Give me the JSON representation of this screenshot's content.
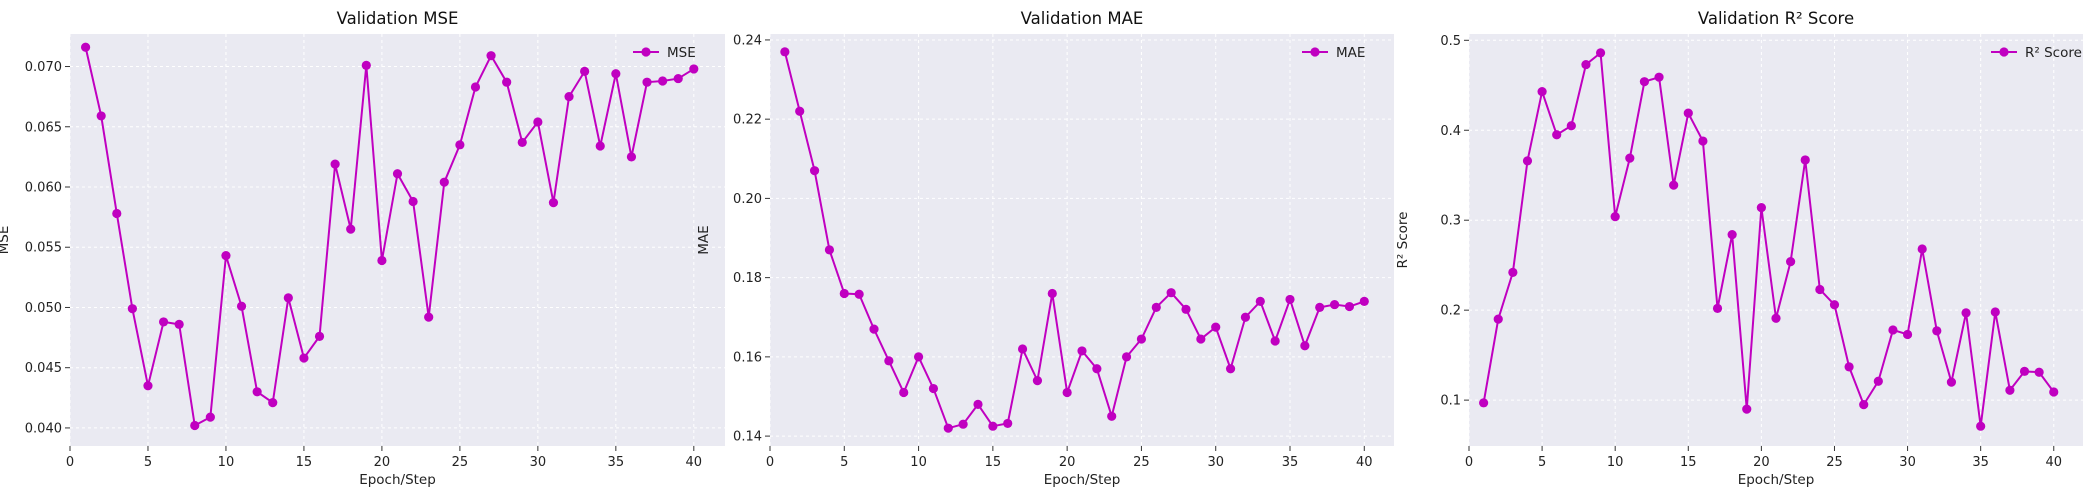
{
  "chart_data": [
    {
      "type": "line",
      "title": "Validation MSE",
      "xlabel": "Epoch/Step",
      "ylabel": "MSE",
      "xlim": [
        0,
        42
      ],
      "ylim": [
        0.0385,
        0.0727
      ],
      "xticks": [
        0,
        5,
        10,
        15,
        20,
        25,
        30,
        35,
        40
      ],
      "xtick_labels": [
        "0",
        "5",
        "10",
        "15",
        "20",
        "25",
        "30",
        "35",
        "40"
      ],
      "yticks": [
        0.04,
        0.045,
        0.05,
        0.055,
        0.06,
        0.065,
        0.07
      ],
      "ytick_labels": [
        "0.040",
        "0.045",
        "0.050",
        "0.055",
        "0.060",
        "0.065",
        "0.070"
      ],
      "grid": true,
      "legend_position": "top-right",
      "series": [
        {
          "name": "MSE",
          "color": "#c000c0",
          "x": [
            1,
            2,
            3,
            4,
            5,
            6,
            7,
            8,
            9,
            10,
            11,
            12,
            13,
            14,
            15,
            16,
            17,
            18,
            19,
            20,
            21,
            22,
            23,
            24,
            25,
            26,
            27,
            28,
            29,
            30,
            31,
            32,
            33,
            34,
            35,
            36,
            37,
            38,
            39,
            40
          ],
          "values": [
            0.0716,
            0.0659,
            0.0578,
            0.0499,
            0.0435,
            0.0488,
            0.0486,
            0.0402,
            0.0409,
            0.0543,
            0.0501,
            0.043,
            0.0421,
            0.0508,
            0.0458,
            0.0476,
            0.0619,
            0.0565,
            0.0701,
            0.0539,
            0.0611,
            0.0588,
            0.0492,
            0.0604,
            0.0635,
            0.0683,
            0.0709,
            0.0687,
            0.0637,
            0.0654,
            0.0587,
            0.0675,
            0.0696,
            0.0634,
            0.0694,
            0.0625,
            0.0687,
            0.0688,
            0.069,
            0.0698
          ]
        }
      ]
    },
    {
      "type": "line",
      "title": "Validation MAE",
      "xlabel": "Epoch/Step",
      "ylabel": "MAE",
      "xlim": [
        0,
        42
      ],
      "ylim": [
        0.1375,
        0.2415
      ],
      "xticks": [
        0,
        5,
        10,
        15,
        20,
        25,
        30,
        35,
        40
      ],
      "xtick_labels": [
        "0",
        "5",
        "10",
        "15",
        "20",
        "25",
        "30",
        "35",
        "40"
      ],
      "yticks": [
        0.14,
        0.16,
        0.18,
        0.2,
        0.22,
        0.24
      ],
      "ytick_labels": [
        "0.14",
        "0.16",
        "0.18",
        "0.20",
        "0.22",
        "0.24"
      ],
      "grid": true,
      "legend_position": "top-right",
      "series": [
        {
          "name": "MAE",
          "color": "#c000c0",
          "x": [
            1,
            2,
            3,
            4,
            5,
            6,
            7,
            8,
            9,
            10,
            11,
            12,
            13,
            14,
            15,
            16,
            17,
            18,
            19,
            20,
            21,
            22,
            23,
            24,
            25,
            26,
            27,
            28,
            29,
            30,
            31,
            32,
            33,
            34,
            35,
            36,
            37,
            38,
            39,
            40
          ],
          "values": [
            0.237,
            0.222,
            0.207,
            0.187,
            0.176,
            0.1758,
            0.167,
            0.159,
            0.151,
            0.16,
            0.152,
            0.142,
            0.143,
            0.148,
            0.1425,
            0.1432,
            0.162,
            0.154,
            0.176,
            0.151,
            0.1615,
            0.157,
            0.145,
            0.16,
            0.1645,
            0.1725,
            0.1762,
            0.172,
            0.1645,
            0.1675,
            0.157,
            0.17,
            0.174,
            0.164,
            0.1745,
            0.1628,
            0.1725,
            0.1732,
            0.1727,
            0.174
          ]
        }
      ]
    },
    {
      "type": "line",
      "title": "Validation R² Score",
      "xlabel": "Epoch/Step",
      "ylabel": "R² Score",
      "xlim": [
        0,
        42
      ],
      "ylim": [
        0.049,
        0.507
      ],
      "xticks": [
        0,
        5,
        10,
        15,
        20,
        25,
        30,
        35,
        40
      ],
      "xtick_labels": [
        "0",
        "5",
        "10",
        "15",
        "20",
        "25",
        "30",
        "35",
        "40"
      ],
      "yticks": [
        0.1,
        0.2,
        0.3,
        0.4,
        0.5
      ],
      "ytick_labels": [
        "0.1",
        "0.2",
        "0.3",
        "0.4",
        "0.5"
      ],
      "grid": true,
      "legend_position": "top-right",
      "series": [
        {
          "name": "R² Score",
          "color": "#c000c0",
          "x": [
            1,
            2,
            3,
            4,
            5,
            6,
            7,
            8,
            9,
            10,
            11,
            12,
            13,
            14,
            15,
            16,
            17,
            18,
            19,
            20,
            21,
            22,
            23,
            24,
            25,
            26,
            27,
            28,
            29,
            30,
            31,
            32,
            33,
            34,
            35,
            36,
            37,
            38,
            39,
            40
          ],
          "values": [
            0.097,
            0.19,
            0.242,
            0.366,
            0.443,
            0.395,
            0.405,
            0.473,
            0.486,
            0.304,
            0.369,
            0.454,
            0.459,
            0.339,
            0.419,
            0.388,
            0.202,
            0.284,
            0.09,
            0.314,
            0.191,
            0.254,
            0.367,
            0.223,
            0.206,
            0.137,
            0.095,
            0.121,
            0.178,
            0.173,
            0.268,
            0.177,
            0.12,
            0.197,
            0.071,
            0.198,
            0.111,
            0.132,
            0.131,
            0.109
          ]
        }
      ]
    }
  ]
}
